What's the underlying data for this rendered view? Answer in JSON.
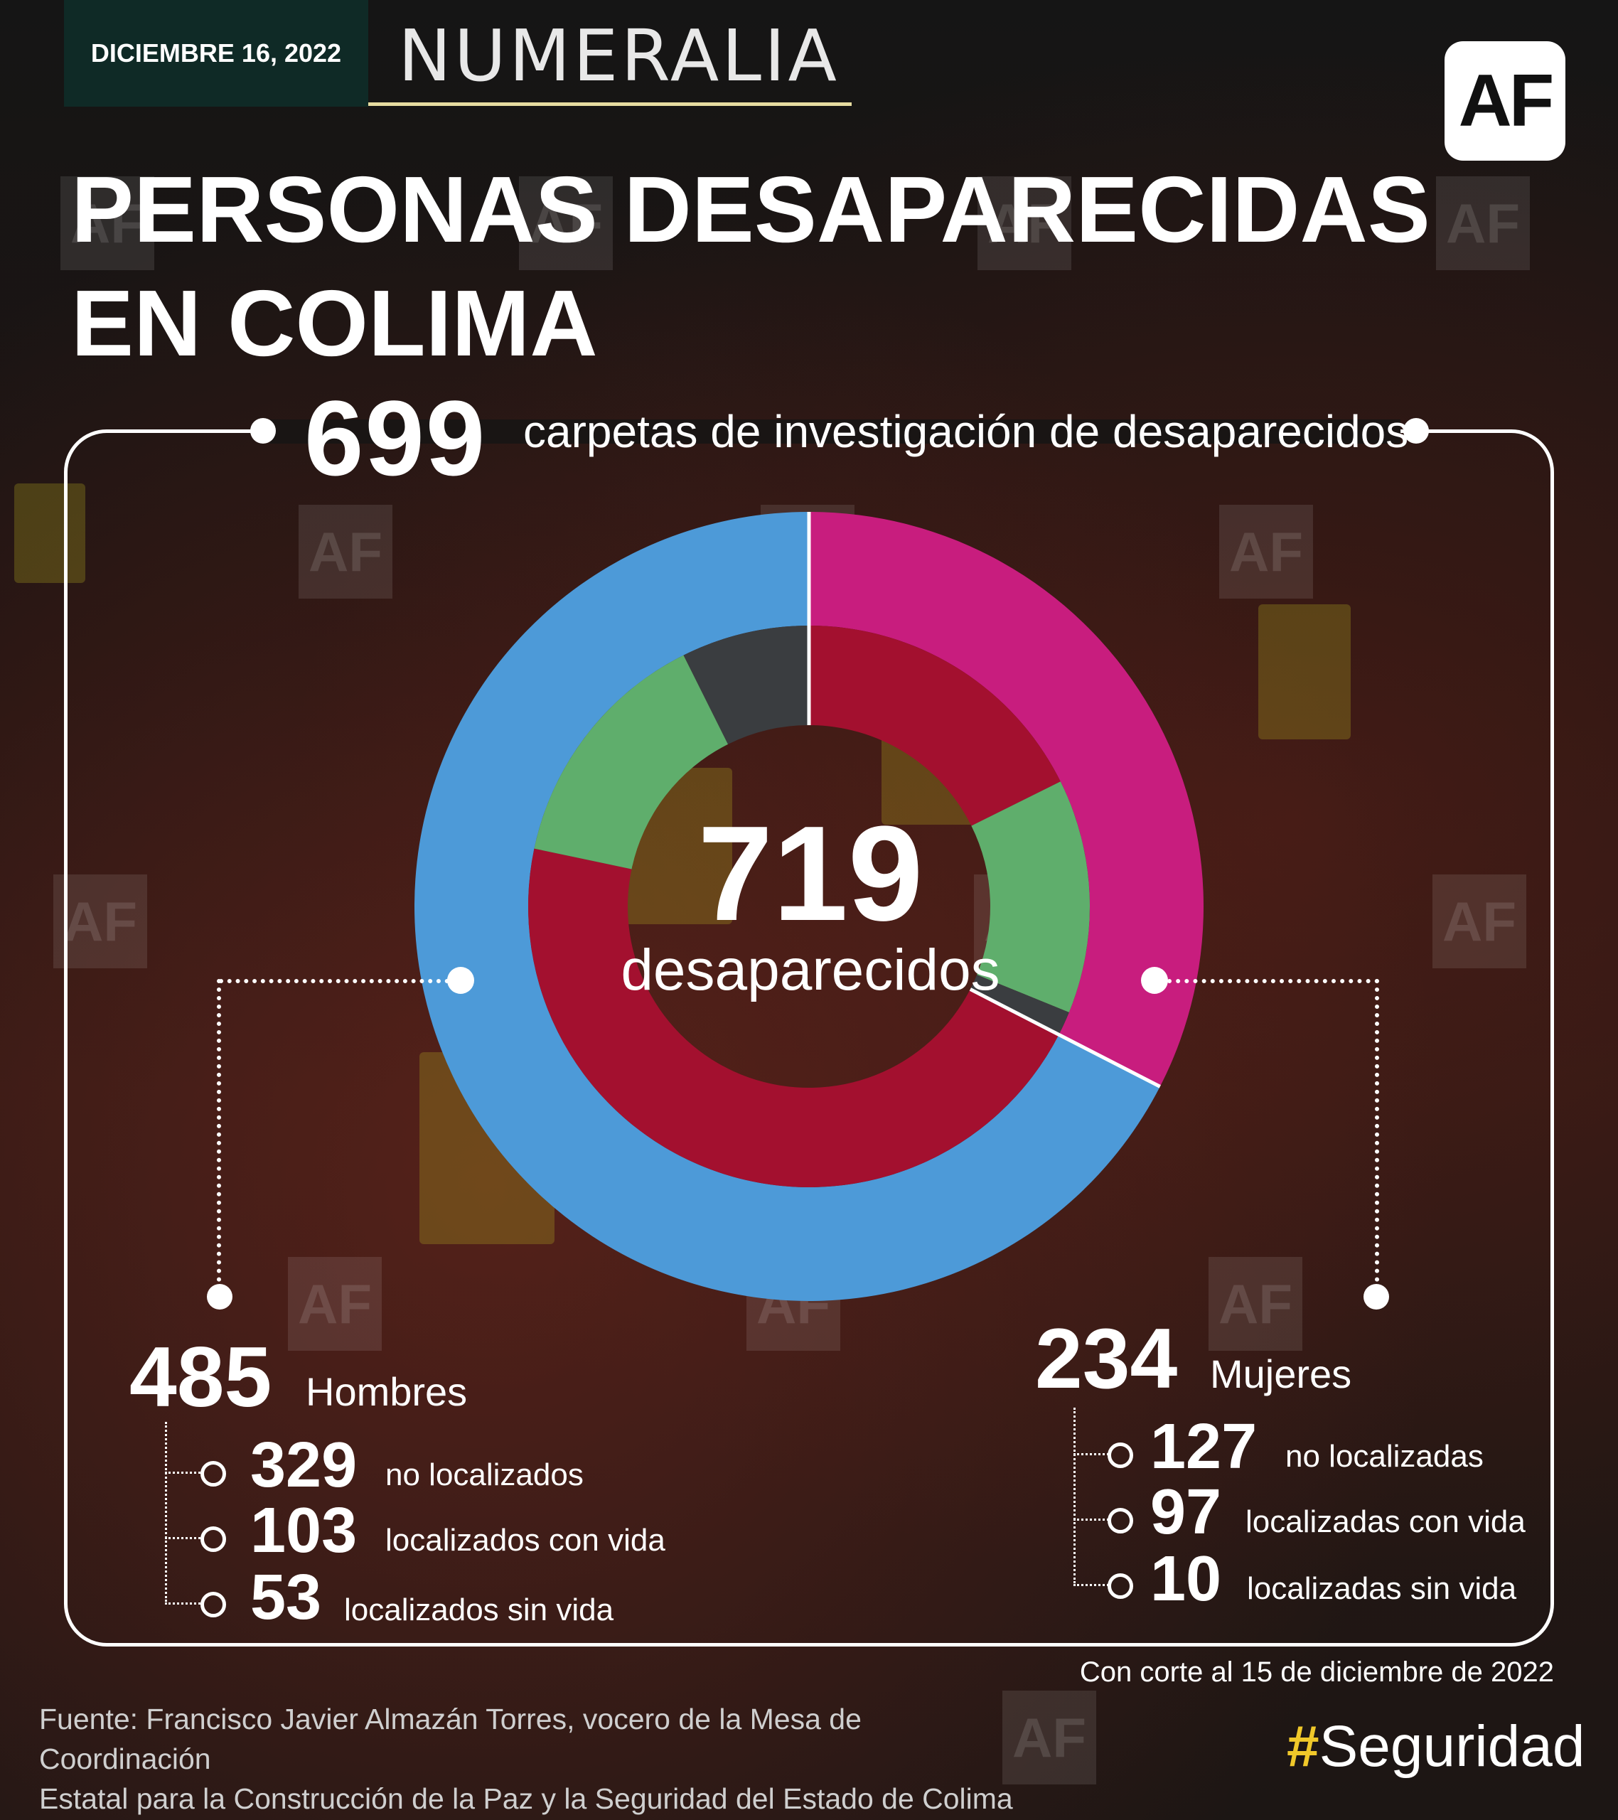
{
  "header": {
    "date": "DICIEMBRE 16, 2022",
    "section": "NUMERALIA",
    "logo": "AF"
  },
  "title": {
    "line1": "PERSONAS DESAPARECIDAS",
    "line2": "EN COLIMA"
  },
  "carpetas": {
    "value": "699",
    "label": "carpetas de investigación de desaparecidos"
  },
  "center": {
    "value": "719",
    "label": "desaparecidos"
  },
  "colors": {
    "hombres": "#4d9ad8",
    "mujeres": "#c81d7e",
    "no_localizados": "#a3102f",
    "localizados_con_vida": "#5fae6c",
    "localizados_sin_vida": "#3a3d40"
  },
  "hombres": {
    "value": "485",
    "label": "Hombres",
    "rows": [
      {
        "value": "329",
        "label": "no localizados"
      },
      {
        "value": "103",
        "label": "localizados con vida"
      },
      {
        "value": "53",
        "label": "localizados sin vida"
      }
    ]
  },
  "mujeres": {
    "value": "234",
    "label": "Mujeres",
    "rows": [
      {
        "value": "127",
        "label": "no localizadas"
      },
      {
        "value": "97",
        "label": "localizadas con vida"
      },
      {
        "value": "10",
        "label": "localizadas sin vida"
      }
    ]
  },
  "footer": {
    "corte": "Con corte al 15 de diciembre de 2022",
    "fuente_line1": "Fuente: Francisco Javier Almazán Torres, vocero de la Mesa de Coordinación",
    "fuente_line2": "Estatal para la Construcción de la Paz y la Seguridad del Estado de Colima",
    "hashtag_symbol": "#",
    "hashtag_text": "Seguridad"
  },
  "chart_data": {
    "type": "pie",
    "total": 719,
    "outer": [
      {
        "name": "Mujeres",
        "value": 234
      },
      {
        "name": "Hombres",
        "value": 485
      }
    ],
    "inner": [
      {
        "group": "Mujeres",
        "name": "no localizadas",
        "value": 127
      },
      {
        "group": "Mujeres",
        "name": "localizadas con vida",
        "value": 97
      },
      {
        "group": "Mujeres",
        "name": "localizadas sin vida",
        "value": 10
      },
      {
        "group": "Hombres",
        "name": "no localizados",
        "value": 329
      },
      {
        "group": "Hombres",
        "name": "localizados con vida",
        "value": 103
      },
      {
        "group": "Hombres",
        "name": "localizados sin vida",
        "value": 53
      }
    ]
  }
}
